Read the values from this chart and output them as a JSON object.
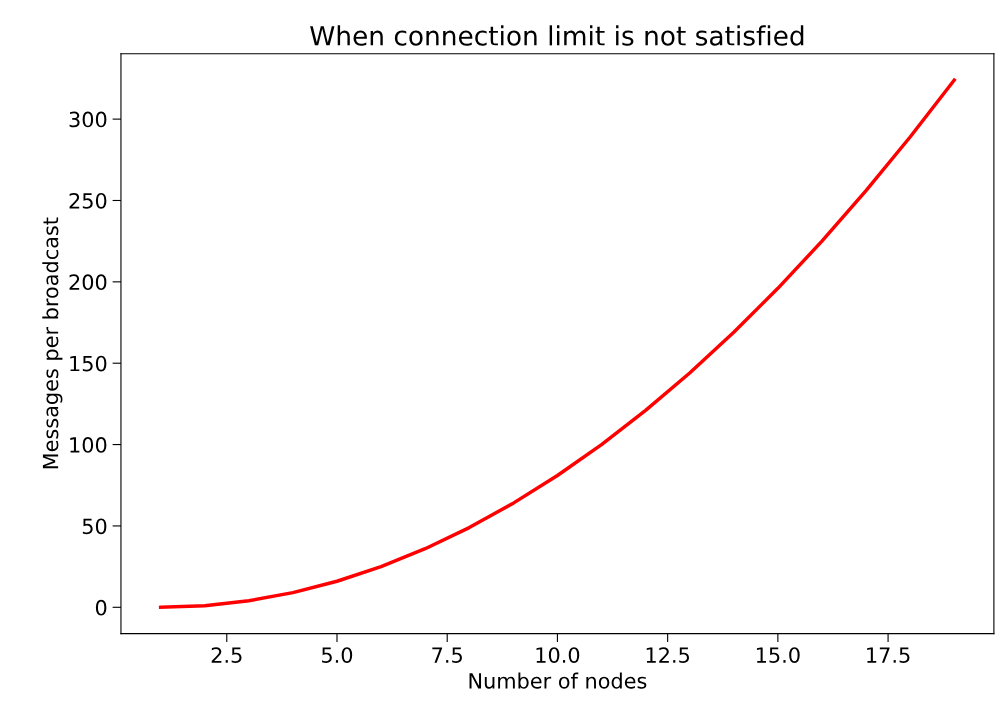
{
  "chart_data": {
    "type": "line",
    "title": "When connection limit is not satisfied",
    "xlabel": "Number of nodes",
    "ylabel": "Messages per broadcast",
    "x": [
      1,
      2,
      3,
      4,
      5,
      6,
      7,
      8,
      9,
      10,
      11,
      12,
      13,
      14,
      15,
      16,
      17,
      18,
      19
    ],
    "series": [
      {
        "color": "#ff0000",
        "values": [
          0,
          1,
          4,
          9,
          16,
          25,
          36,
          49,
          64,
          81,
          100,
          121,
          144,
          169,
          196,
          225,
          256,
          289,
          324
        ]
      }
    ],
    "xlim": [
      0.1,
      19.9
    ],
    "ylim": [
      -16.2,
      340.2
    ],
    "xticks": [
      2.5,
      {
        "value": 5,
        "label": "5.0"
      },
      7.5,
      {
        "value": 10,
        "label": "10.0"
      },
      12.5,
      {
        "value": 15,
        "label": "15.0"
      },
      17.5
    ],
    "yticks": [
      0,
      50,
      100,
      150,
      200,
      250,
      300
    ],
    "grid": false,
    "marker": "none",
    "line_style": "solid"
  }
}
